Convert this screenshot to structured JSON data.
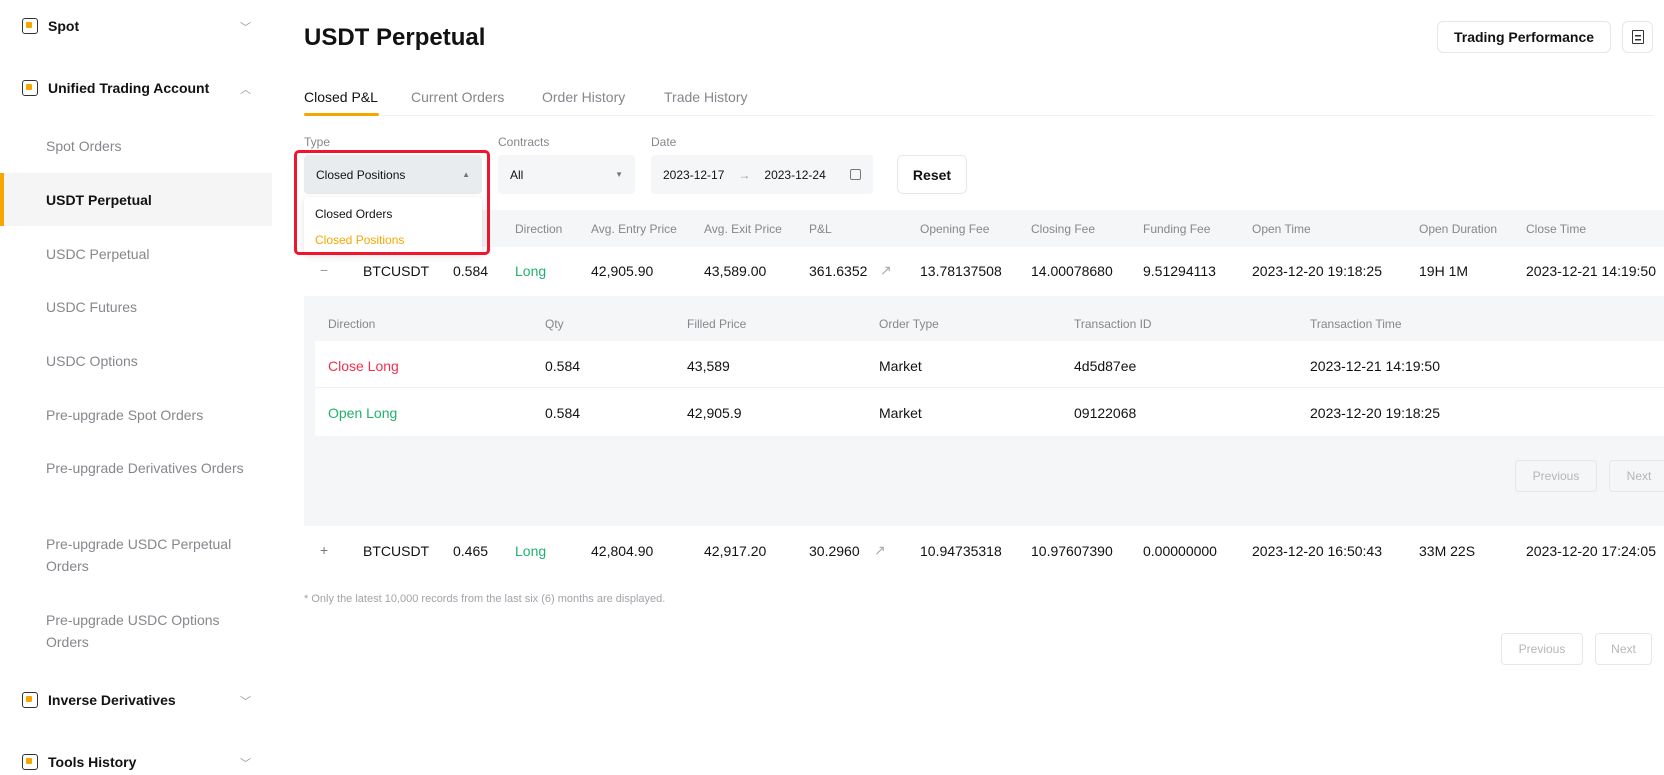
{
  "sidebar": {
    "sections": [
      {
        "label": "Spot",
        "icon": "spot-icon",
        "expanded": false
      },
      {
        "label": "Unified Trading Account",
        "icon": "wallet-icon",
        "expanded": true
      },
      {
        "label": "Inverse Derivatives",
        "icon": "inverse-icon",
        "expanded": false
      },
      {
        "label": "Tools History",
        "icon": "tools-icon",
        "expanded": false
      }
    ],
    "items": [
      {
        "label": "Spot Orders"
      },
      {
        "label": "USDT Perpetual",
        "active": true
      },
      {
        "label": "USDC Perpetual"
      },
      {
        "label": "USDC Futures"
      },
      {
        "label": "USDC Options"
      },
      {
        "label": "Pre-upgrade Spot Orders"
      },
      {
        "label": "Pre-upgrade Derivatives Orders"
      },
      {
        "label": "Pre-upgrade USDC Perpetual Orders"
      },
      {
        "label": "Pre-upgrade USDC Options Orders"
      }
    ]
  },
  "header": {
    "title": "USDT Perpetual",
    "trading_performance": "Trading Performance",
    "receipt_icon": "receipt-icon"
  },
  "tabs": [
    {
      "label": "Closed P&L",
      "active": true
    },
    {
      "label": "Current Orders"
    },
    {
      "label": "Order History"
    },
    {
      "label": "Trade History"
    }
  ],
  "filters": {
    "type_label": "Type",
    "type_value": "Closed Positions",
    "type_options": [
      "Closed Orders",
      "Closed Positions"
    ],
    "contracts_label": "Contracts",
    "contracts_value": "All",
    "date_label": "Date",
    "date_from": "2023-12-17",
    "date_to": "2023-12-24",
    "reset": "Reset"
  },
  "table": {
    "headers": [
      "Direction",
      "Avg. Entry Price",
      "Avg. Exit Price",
      "P&L",
      "Opening Fee",
      "Closing Fee",
      "Funding Fee",
      "Open Time",
      "Open Duration",
      "Close Time"
    ],
    "rows": [
      {
        "expand": "−",
        "symbol": "BTCUSDT",
        "qty": "0.584",
        "direction": "Long",
        "entry": "42,905.90",
        "exit": "43,589.00",
        "pnl": "361.6352",
        "opening_fee": "13.78137508",
        "closing_fee": "14.00078680",
        "funding_fee": "9.51294113",
        "open_time": "2023-12-20 19:18:25",
        "duration": "19H 1M",
        "close_time": "2023-12-21 14:19:50"
      },
      {
        "expand": "+",
        "symbol": "BTCUSDT",
        "qty": "0.465",
        "direction": "Long",
        "entry": "42,804.90",
        "exit": "42,917.20",
        "pnl": "30.2960",
        "opening_fee": "10.94735318",
        "closing_fee": "10.97607390",
        "funding_fee": "0.00000000",
        "open_time": "2023-12-20 16:50:43",
        "duration": "33M 22S",
        "close_time": "2023-12-20 17:24:05"
      }
    ]
  },
  "detail": {
    "headers": [
      "Direction",
      "Qty",
      "Filled Price",
      "Order Type",
      "Transaction ID",
      "Transaction Time"
    ],
    "rows": [
      {
        "direction": "Close Long",
        "qty": "0.584",
        "price": "43,589",
        "type": "Market",
        "id": "4d5d87ee",
        "time": "2023-12-21 14:19:50"
      },
      {
        "direction": "Open Long",
        "qty": "0.584",
        "price": "42,905.9",
        "type": "Market",
        "id": "09122068",
        "time": "2023-12-20 19:18:25"
      }
    ],
    "previous": "Previous",
    "next": "Next"
  },
  "footnote": "* Only the latest 10,000 records from the last six (6) months are displayed.",
  "pagination": {
    "previous": "Previous",
    "next": "Next"
  },
  "colors": {
    "accent": "#f7a600",
    "long": "#20b26c",
    "short": "#f0304c",
    "highlight_box": "#f0142d"
  }
}
